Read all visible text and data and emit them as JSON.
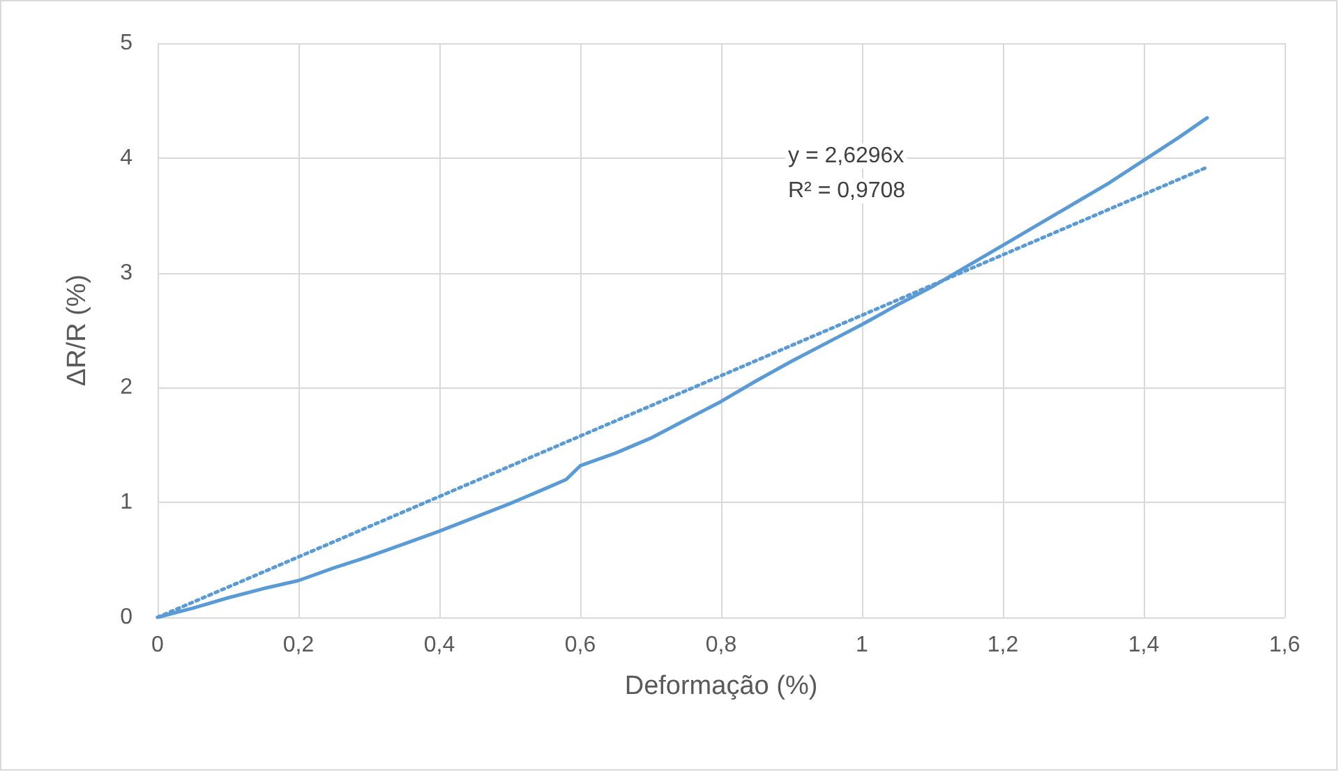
{
  "chart_data": {
    "type": "line",
    "xlabel": "Deformação (%)",
    "ylabel": "ΔR/R (%)",
    "annotations": [
      "y = 2,6296x",
      "R² = 0,9708"
    ],
    "xlim": [
      0,
      1.6
    ],
    "xticks": [
      0,
      {
        "value": 0.2,
        "label": "0,2"
      },
      {
        "value": 0.4,
        "label": "0,4"
      },
      {
        "value": 0.6,
        "label": "0,6"
      },
      {
        "value": 0.8,
        "label": "0,8"
      },
      1,
      {
        "value": 1.2,
        "label": "1,2"
      },
      {
        "value": 1.4,
        "label": "1,4"
      },
      {
        "value": 1.6,
        "label": "1,6"
      }
    ],
    "ylim": [
      0,
      5
    ],
    "yticks": [
      0,
      1,
      2,
      3,
      4,
      5
    ],
    "grid": true,
    "marker": "none",
    "series": [
      {
        "color": "#5b9bd5",
        "line_style": "solid",
        "x": [
          0,
          0.05,
          0.1,
          0.15,
          0.2,
          0.25,
          0.3,
          0.35,
          0.4,
          0.45,
          0.5,
          0.55,
          0.58,
          0.6,
          0.65,
          0.7,
          0.75,
          0.8,
          0.85,
          0.9,
          0.95,
          1.0,
          1.05,
          1.1,
          1.15,
          1.2,
          1.25,
          1.3,
          1.35,
          1.4,
          1.45,
          1.49
        ],
        "values": [
          0,
          0.08,
          0.17,
          0.25,
          0.32,
          0.43,
          0.53,
          0.64,
          0.75,
          0.87,
          0.99,
          1.12,
          1.2,
          1.32,
          1.43,
          1.56,
          1.72,
          1.88,
          2.06,
          2.23,
          2.39,
          2.55,
          2.72,
          2.88,
          3.06,
          3.24,
          3.42,
          3.6,
          3.78,
          3.98,
          4.18,
          4.35
        ]
      },
      {
        "color": "#5b9bd5",
        "line_style": "dotted",
        "x": [
          0,
          1.49
        ],
        "values": [
          0,
          3.92
        ]
      }
    ]
  }
}
